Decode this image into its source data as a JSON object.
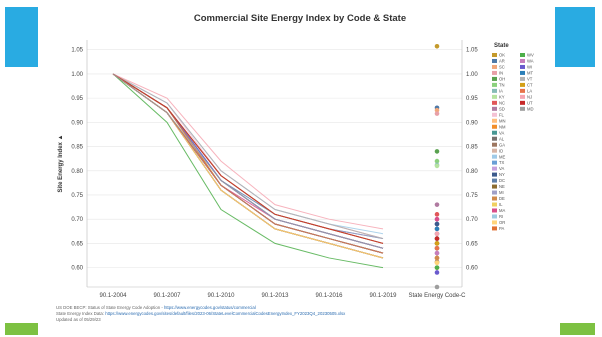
{
  "colors": {
    "accent_blue": "#29abe2",
    "accent_green": "#7dc142"
  },
  "chart_data": {
    "type": "line",
    "title": "Commercial Site Energy Index by Code & State",
    "xlabel": "",
    "ylabel": "Site Energy Index ▲",
    "categories": [
      "90.1-2004",
      "90.1-2007",
      "90.1-2010",
      "90.1-2013",
      "90.1-2016",
      "90.1-2019",
      "State Energy Code-C"
    ],
    "ylim": [
      0.56,
      1.07
    ],
    "yticks": [
      "1.05",
      "1.00",
      "0.95",
      "0.90",
      "0.85",
      "0.80",
      "0.75",
      "0.70",
      "0.65",
      "0.60"
    ],
    "ytick_values": [
      1.05,
      1.0,
      0.95,
      0.9,
      0.85,
      0.8,
      0.75,
      0.7,
      0.65,
      0.6
    ],
    "grid": true,
    "legend_placement": "right",
    "legend_title": "State",
    "series": [
      {
        "name": "OK",
        "color": "#c49a2c",
        "values": [
          1.0,
          0.93,
          0.78,
          0.7,
          0.67,
          0.64,
          1.057
        ]
      },
      {
        "name": "AR",
        "color": "#4e79a7",
        "values": [
          1.0,
          0.92,
          0.77,
          0.69,
          0.66,
          0.63,
          0.93
        ]
      },
      {
        "name": "SC",
        "color": "#f1a77a",
        "values": [
          1.0,
          0.93,
          0.78,
          0.7,
          0.67,
          0.64,
          0.925
        ]
      },
      {
        "name": "IN",
        "color": "#e8a0a8",
        "values": [
          1.0,
          0.94,
          0.8,
          0.72,
          0.69,
          0.66,
          0.918
        ]
      },
      {
        "name": "OH",
        "color": "#59a14f",
        "values": [
          1.0,
          0.92,
          0.76,
          0.68,
          0.65,
          0.62,
          0.84
        ]
      },
      {
        "name": "TN",
        "color": "#8cd17d",
        "values": [
          1.0,
          0.92,
          0.77,
          0.69,
          0.66,
          0.63,
          0.82
        ]
      },
      {
        "name": "IA",
        "color": "#86bcb6",
        "values": [
          1.0,
          0.93,
          0.78,
          0.7,
          0.67,
          0.64,
          0.812
        ]
      },
      {
        "name": "KY",
        "color": "#b6e3a0",
        "values": [
          1.0,
          0.92,
          0.76,
          0.68,
          0.65,
          0.62,
          0.81
        ]
      },
      {
        "name": "NC",
        "color": "#e15759",
        "values": [
          1.0,
          0.92,
          0.77,
          0.69,
          0.66,
          0.63,
          0.71
        ]
      },
      {
        "name": "SD",
        "color": "#b07aa1",
        "values": [
          1.0,
          0.93,
          0.78,
          0.7,
          0.67,
          0.64,
          0.73
        ]
      },
      {
        "name": "FL",
        "color": "#f4c2d4",
        "values": [
          1.0,
          0.94,
          0.79,
          0.71,
          0.68,
          0.65,
          0.69
        ]
      },
      {
        "name": "MN",
        "color": "#ffbe7d",
        "values": [
          1.0,
          0.93,
          0.77,
          0.69,
          0.66,
          0.63,
          0.68
        ]
      },
      {
        "name": "NM",
        "color": "#f28e2b",
        "values": [
          1.0,
          0.92,
          0.76,
          0.68,
          0.65,
          0.62,
          0.62
        ]
      },
      {
        "name": "VA",
        "color": "#499894",
        "values": [
          1.0,
          0.93,
          0.78,
          0.7,
          0.67,
          0.64,
          0.66
        ]
      },
      {
        "name": "AL",
        "color": "#79706e",
        "values": [
          1.0,
          0.92,
          0.76,
          0.68,
          0.65,
          0.62,
          0.64
        ]
      },
      {
        "name": "GA",
        "color": "#9d7660",
        "values": [
          1.0,
          0.93,
          0.77,
          0.69,
          0.66,
          0.63,
          0.612
        ]
      },
      {
        "name": "ID",
        "color": "#d7b5a6",
        "values": [
          1.0,
          0.92,
          0.77,
          0.69,
          0.66,
          0.63,
          0.65
        ]
      },
      {
        "name": "ME",
        "color": "#a0cbe8",
        "values": [
          1.0,
          0.94,
          0.8,
          0.72,
          0.69,
          0.67,
          0.7
        ]
      },
      {
        "name": "TX",
        "color": "#6a9fd6",
        "values": [
          1.0,
          0.93,
          0.79,
          0.71,
          0.68,
          0.65,
          0.69
        ]
      },
      {
        "name": "VA",
        "color": "#c6a0dd",
        "values": [
          1.0,
          0.93,
          0.78,
          0.7,
          0.67,
          0.64,
          0.68
        ]
      },
      {
        "name": "NY",
        "color": "#3c5a8c",
        "values": [
          1.0,
          0.92,
          0.77,
          0.69,
          0.66,
          0.63,
          0.69
        ]
      },
      {
        "name": "DC",
        "color": "#5e7fa8",
        "values": [
          1.0,
          0.93,
          0.78,
          0.71,
          0.68,
          0.66,
          0.67
        ]
      },
      {
        "name": "NE",
        "color": "#8c6d31",
        "values": [
          1.0,
          0.92,
          0.76,
          0.68,
          0.65,
          0.62,
          0.65
        ]
      },
      {
        "name": "MI",
        "color": "#a0a0c8",
        "values": [
          1.0,
          0.93,
          0.79,
          0.71,
          0.68,
          0.66,
          0.64
        ]
      },
      {
        "name": "DE",
        "color": "#d08a4c",
        "values": [
          1.0,
          0.92,
          0.76,
          0.68,
          0.65,
          0.62,
          0.62
        ]
      },
      {
        "name": "IL",
        "color": "#f0d060",
        "values": [
          1.0,
          0.93,
          0.77,
          0.69,
          0.66,
          0.63,
          0.61
        ]
      },
      {
        "name": "MA",
        "color": "#d94f8a",
        "values": [
          1.0,
          0.92,
          0.77,
          0.7,
          0.67,
          0.64,
          0.7
        ]
      },
      {
        "name": "RI",
        "color": "#9ecae1",
        "values": [
          1.0,
          0.93,
          0.78,
          0.7,
          0.67,
          0.64,
          0.63
        ]
      },
      {
        "name": "OR",
        "color": "#ffd47a",
        "values": [
          1.0,
          0.92,
          0.76,
          0.68,
          0.65,
          0.62,
          0.61
        ]
      },
      {
        "name": "PA",
        "color": "#e07030",
        "values": [
          1.0,
          0.93,
          0.77,
          0.69,
          0.66,
          0.63,
          0.6
        ]
      },
      {
        "name": "WV",
        "color": "#4daf4a",
        "values": [
          1.0,
          0.9,
          0.72,
          0.65,
          0.62,
          0.6,
          0.6
        ]
      },
      {
        "name": "WA",
        "color": "#c77dbb",
        "values": [
          1.0,
          0.93,
          0.79,
          0.71,
          0.68,
          0.65,
          0.63
        ]
      },
      {
        "name": "WI",
        "color": "#6a5acd",
        "values": [
          1.0,
          0.93,
          0.78,
          0.7,
          0.67,
          0.64,
          0.59
        ]
      },
      {
        "name": "MT",
        "color": "#2c7fb8",
        "values": [
          1.0,
          0.92,
          0.77,
          0.69,
          0.66,
          0.63,
          0.68
        ]
      },
      {
        "name": "VT",
        "color": "#b3b3b3",
        "values": [
          1.0,
          0.94,
          0.8,
          0.72,
          0.69,
          0.66,
          0.66
        ]
      },
      {
        "name": "CT",
        "color": "#d4a017",
        "values": [
          1.0,
          0.93,
          0.79,
          0.71,
          0.68,
          0.65,
          0.65
        ]
      },
      {
        "name": "LA",
        "color": "#e8734a",
        "values": [
          1.0,
          0.92,
          0.77,
          0.69,
          0.66,
          0.63,
          0.64
        ]
      },
      {
        "name": "NJ",
        "color": "#f6a6b2",
        "values": [
          1.0,
          0.95,
          0.82,
          0.73,
          0.7,
          0.68,
          0.67
        ]
      },
      {
        "name": "UT",
        "color": "#c62828",
        "values": [
          1.0,
          0.93,
          0.79,
          0.71,
          0.68,
          0.65,
          0.66
        ]
      },
      {
        "name": "MD",
        "color": "#9e9e9e",
        "values": [
          1.0,
          0.92,
          0.78,
          0.7,
          0.67,
          0.64,
          0.56
        ]
      }
    ]
  },
  "footer": {
    "line1_text": "US DOE BECP: Status of State Energy Code Adoption - ",
    "line1_link": "https://www.energycodes.gov/status/commercial",
    "line2_text": "State Energy Index Data: ",
    "line2_link": "https://www.energycodes.gov/sites/default/files/2023-06/StateLevelCommercialCodesEnergyIndex_FY2023Q4_20230505.xlsx",
    "line3_text": "Updated as of 05/29/23"
  }
}
